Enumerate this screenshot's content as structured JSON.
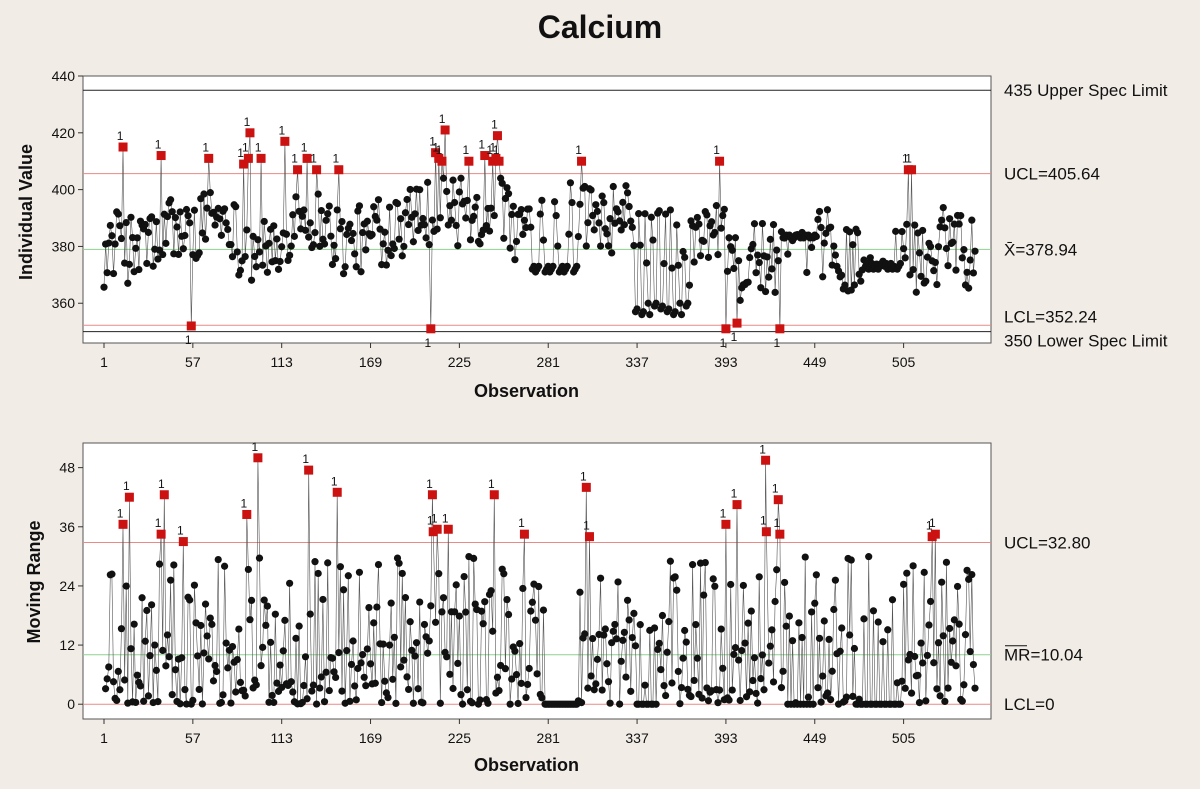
{
  "title": "Calcium",
  "colors": {
    "background": "#f1ece6",
    "plot_bg": "#ffffff",
    "point": "#111111",
    "flagged_point": "#cc1111",
    "control_line": "#e88a86",
    "center_line": "#8fd18f",
    "spec_line": "#222222"
  },
  "chart_data": [
    {
      "type": "scatter",
      "name": "I chart",
      "title": "Calcium",
      "xlabel": "Observation",
      "ylabel": "Individual Value",
      "xlim": [
        1,
        550
      ],
      "ylim": [
        346,
        440
      ],
      "xticks": [
        1,
        57,
        113,
        169,
        225,
        281,
        337,
        393,
        449,
        505
      ],
      "xtick_labels": [
        "1",
        "57",
        "113",
        "169",
        "225",
        "281",
        "337",
        "393",
        "449",
        "505"
      ],
      "yticks": [
        360,
        380,
        400,
        420,
        440
      ],
      "ytick_labels": [
        "360",
        "380",
        "400",
        "420",
        "440"
      ],
      "reference_lines": [
        {
          "value": 435,
          "label": "435 Upper Spec Limit",
          "kind": "spec"
        },
        {
          "value": 405.64,
          "label": "UCL=405.64",
          "kind": "control"
        },
        {
          "value": 378.94,
          "label": "X̄=378.94",
          "kind": "center"
        },
        {
          "value": 352.24,
          "label": "LCL=352.24",
          "kind": "control"
        },
        {
          "value": 350,
          "label": "350 Lower Spec Limit",
          "kind": "spec"
        }
      ],
      "flag_label": "1",
      "flagged_points": [
        {
          "x": 13,
          "y": 415
        },
        {
          "x": 37,
          "y": 412
        },
        {
          "x": 56,
          "y": 352
        },
        {
          "x": 67,
          "y": 411
        },
        {
          "x": 89,
          "y": 409
        },
        {
          "x": 92,
          "y": 411
        },
        {
          "x": 93,
          "y": 420
        },
        {
          "x": 100,
          "y": 411
        },
        {
          "x": 115,
          "y": 417
        },
        {
          "x": 123,
          "y": 407
        },
        {
          "x": 129,
          "y": 411
        },
        {
          "x": 135,
          "y": 407
        },
        {
          "x": 149,
          "y": 407
        },
        {
          "x": 207,
          "y": 351
        },
        {
          "x": 210,
          "y": 413
        },
        {
          "x": 212,
          "y": 411
        },
        {
          "x": 214,
          "y": 410
        },
        {
          "x": 216,
          "y": 421
        },
        {
          "x": 231,
          "y": 410
        },
        {
          "x": 241,
          "y": 412
        },
        {
          "x": 246,
          "y": 410
        },
        {
          "x": 248,
          "y": 411
        },
        {
          "x": 249,
          "y": 419
        },
        {
          "x": 250,
          "y": 410
        },
        {
          "x": 302,
          "y": 410
        },
        {
          "x": 389,
          "y": 410
        },
        {
          "x": 393,
          "y": 351
        },
        {
          "x": 400,
          "y": 353
        },
        {
          "x": 427,
          "y": 351
        },
        {
          "x": 508,
          "y": 407
        },
        {
          "x": 510,
          "y": 407
        }
      ]
    },
    {
      "type": "scatter",
      "name": "MR chart",
      "xlabel": "Observation",
      "ylabel": "Moving Range",
      "xlim": [
        1,
        550
      ],
      "ylim": [
        -3,
        53
      ],
      "xticks": [
        1,
        57,
        113,
        169,
        225,
        281,
        337,
        393,
        449,
        505
      ],
      "xtick_labels": [
        "1",
        "57",
        "113",
        "169",
        "225",
        "281",
        "337",
        "393",
        "449",
        "505"
      ],
      "yticks": [
        0,
        12,
        24,
        36,
        48
      ],
      "ytick_labels": [
        "0",
        "12",
        "24",
        "36",
        "48"
      ],
      "reference_lines": [
        {
          "value": 32.8,
          "label": "UCL=32.80",
          "kind": "control"
        },
        {
          "value": 10.04,
          "label": "MR=10.04",
          "kind": "center",
          "overline": true
        },
        {
          "value": 0,
          "label": "LCL=0",
          "kind": "control"
        }
      ],
      "flag_label": "1",
      "flagged_points": [
        {
          "x": 13,
          "y": 36.5
        },
        {
          "x": 17,
          "y": 42
        },
        {
          "x": 37,
          "y": 34.5
        },
        {
          "x": 39,
          "y": 42.5
        },
        {
          "x": 51,
          "y": 33
        },
        {
          "x": 91,
          "y": 38.5
        },
        {
          "x": 98,
          "y": 50
        },
        {
          "x": 130,
          "y": 47.5
        },
        {
          "x": 148,
          "y": 43
        },
        {
          "x": 208,
          "y": 42.5
        },
        {
          "x": 208.5,
          "y": 35
        },
        {
          "x": 211,
          "y": 35.5
        },
        {
          "x": 218,
          "y": 35.5
        },
        {
          "x": 247,
          "y": 42.5
        },
        {
          "x": 266,
          "y": 34.5
        },
        {
          "x": 305,
          "y": 44
        },
        {
          "x": 307,
          "y": 34
        },
        {
          "x": 393,
          "y": 36.5
        },
        {
          "x": 400,
          "y": 40.5
        },
        {
          "x": 418,
          "y": 49.5
        },
        {
          "x": 418.5,
          "y": 35
        },
        {
          "x": 426,
          "y": 41.5
        },
        {
          "x": 427,
          "y": 34.5
        },
        {
          "x": 523,
          "y": 34
        },
        {
          "x": 525,
          "y": 34.5
        }
      ]
    }
  ]
}
